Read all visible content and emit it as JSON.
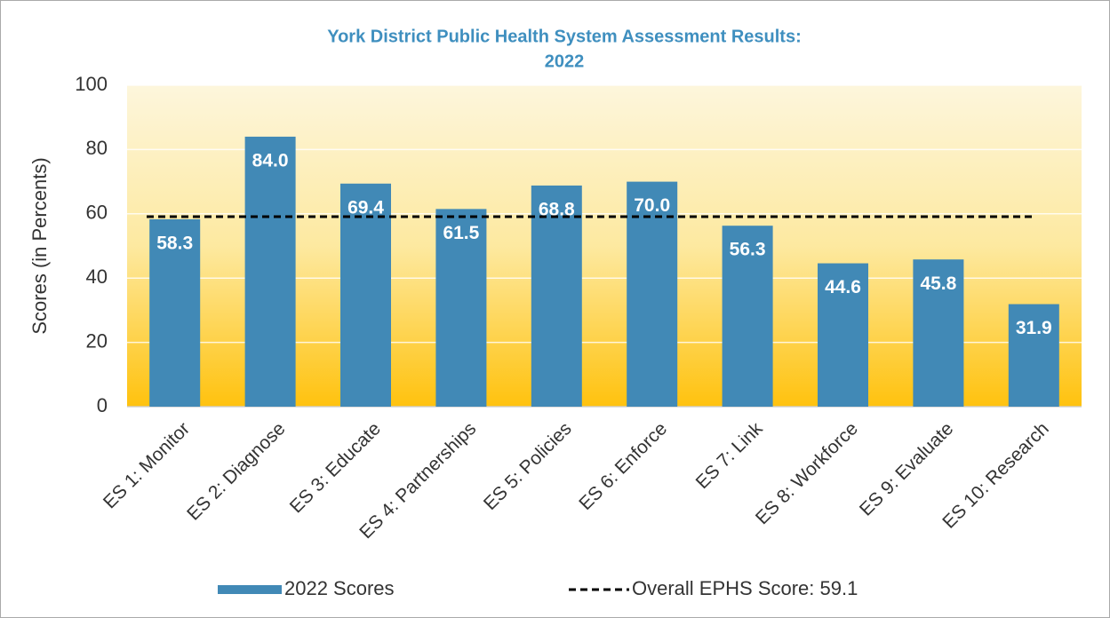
{
  "chart_data": {
    "type": "bar",
    "title": [
      "York District Public Health System Assessment Results:",
      "2022"
    ],
    "y_label": "Scores (in Percents)",
    "categories": [
      "ES 1: Monitor",
      "ES 2: Diagnose",
      "ES 3: Educate",
      "ES 4: Partnerships",
      "ES 5: Policies",
      "ES 6: Enforce",
      "ES 7: Link",
      "ES 8: Workforce",
      "ES 9: Evaluate",
      "ES 10: Research"
    ],
    "series": [
      {
        "name": "2022 Scores",
        "color": "#4189b6",
        "values": [
          58.3,
          84.0,
          69.4,
          61.5,
          68.8,
          70.0,
          56.3,
          44.6,
          45.8,
          31.9
        ],
        "value_labels": [
          "58.3",
          "84.0",
          "69.4",
          "61.5",
          "68.8",
          "70.0",
          "56.3",
          "44.6",
          "45.8",
          "31.9"
        ]
      }
    ],
    "reference_line": {
      "name": "Overall EPHS Score: 59.1",
      "value": 59.1,
      "color": "#000000"
    },
    "ylim": [
      0,
      100
    ],
    "yticks": [
      0,
      20,
      40,
      60,
      80,
      100
    ],
    "grid": true,
    "legend": "bottom"
  }
}
